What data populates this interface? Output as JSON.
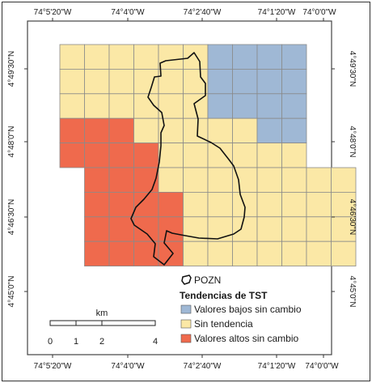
{
  "map": {
    "top_labels": [
      "74°5'20\"W",
      "74°4'0\"W",
      "74°2'40\"W",
      "74°1'20\"W",
      "74°0'0\"W"
    ],
    "bottom_labels": [
      "74°5'20\"W",
      "74°4'0\"W",
      "74°2'40\"W",
      "74°1'20\"W",
      "74°0'0\"W"
    ],
    "left_labels": [
      "4°49'30\"N",
      "4°48'0\"N",
      "4°46'30\"N",
      "4°45'0\"N"
    ],
    "right_labels": [
      "4°49'30\"N",
      "4°48'0\"N",
      "4°46'30\"N",
      "4°45'0\"N"
    ],
    "grid": {
      "classes": [
        "Y",
        "B",
        "R"
      ],
      "cells": [
        "......................",
        "..YYYYYYBBBB...",
        "..YYYYYYBBBB...",
        "..YYYYYYBBBB...",
        "..RRRYYYYBYB...",
        "..RRRRYYYYYY...",
        "...RRRRYYYYYY..",
        "...RRRRYYYYYYY.",
        "...RRRRYYYYYYY.",
        "...RRRRYYYYYYY."
      ]
    },
    "colors": {
      "Y": "#fbe8a6",
      "B": "#9fb8d5",
      "R": "#ef6a4d",
      "grid_line": "#8a8a8a",
      "frame": "#444444",
      "boundary": "#111111"
    },
    "boundary_name": "POZN"
  },
  "legend": {
    "boundary_label": "POZN",
    "title": "Tendencias de TST",
    "items": [
      {
        "label": "Valores bajos sin cambio",
        "color": "#9fb8d5"
      },
      {
        "label": "Sin tendencia",
        "color": "#fbe8a6"
      },
      {
        "label": "Valores altos sin cambio",
        "color": "#ef6a4d"
      }
    ]
  },
  "scalebar": {
    "unit": "km",
    "ticks": [
      "0",
      "1",
      "2",
      "4"
    ]
  }
}
